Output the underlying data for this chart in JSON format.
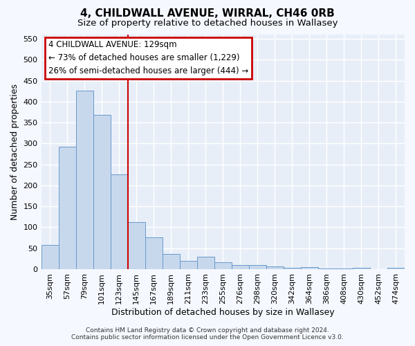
{
  "title_line1": "4, CHILDWALL AVENUE, WIRRAL, CH46 0RB",
  "title_line2": "Size of property relative to detached houses in Wallasey",
  "xlabel": "Distribution of detached houses by size in Wallasey",
  "ylabel": "Number of detached properties",
  "footer_line1": "Contains HM Land Registry data © Crown copyright and database right 2024.",
  "footer_line2": "Contains public sector information licensed under the Open Government Licence v3.0.",
  "bin_labels": [
    "35sqm",
    "57sqm",
    "79sqm",
    "101sqm",
    "123sqm",
    "145sqm",
    "167sqm",
    "189sqm",
    "211sqm",
    "233sqm",
    "255sqm",
    "276sqm",
    "298sqm",
    "320sqm",
    "342sqm",
    "364sqm",
    "386sqm",
    "408sqm",
    "430sqm",
    "452sqm",
    "474sqm"
  ],
  "bar_values": [
    57,
    293,
    427,
    369,
    226,
    113,
    76,
    37,
    20,
    29,
    17,
    10,
    10,
    7,
    4,
    5,
    1,
    1,
    4,
    0,
    4
  ],
  "bar_color": "#c8d8ec",
  "bar_edge_color": "#6699cc",
  "marker_line_color": "#cc0000",
  "annotation_text_line1": "4 CHILDWALL AVENUE: 129sqm",
  "annotation_text_line2": "← 73% of detached houses are smaller (1,229)",
  "annotation_text_line3": "26% of semi-detached houses are larger (444) →",
  "annotation_box_color": "#ffffff",
  "annotation_box_edge_color": "#cc0000",
  "ylim": [
    0,
    560
  ],
  "yticks": [
    0,
    50,
    100,
    150,
    200,
    250,
    300,
    350,
    400,
    450,
    500,
    550
  ],
  "background_color": "#f5f8ff",
  "plot_bg_color": "#e8eef8",
  "grid_color": "#ffffff",
  "title_fontsize": 11,
  "subtitle_fontsize": 9.5,
  "axis_label_fontsize": 9,
  "tick_label_fontsize": 8,
  "annotation_fontsize": 8.5,
  "footer_fontsize": 6.5
}
